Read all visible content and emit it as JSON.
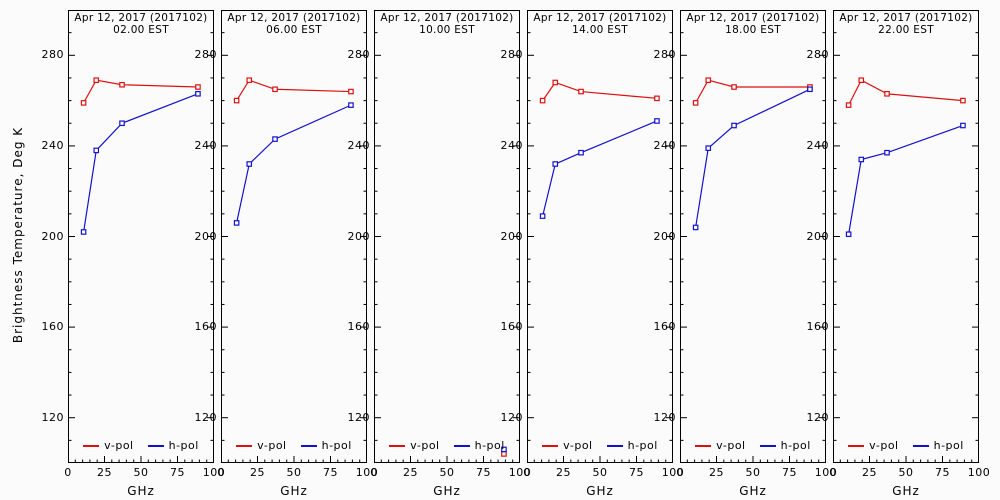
{
  "figure": {
    "ylabel": "Brightness Temperature, Deg K",
    "xlabel": "GHz",
    "background": "#fbfbfb",
    "axis_color": "#000000",
    "legend": {
      "v_label": "v-pol",
      "h_label": "h-pol"
    },
    "colors": {
      "v_pol": "#dd1010",
      "h_pol": "#1212cc"
    }
  },
  "chart_data": [
    {
      "type": "line",
      "title": "Apr 12, 2017 (2017102)",
      "subtitle": "02.00 EST",
      "xlabel": "GHz",
      "ylabel": "Brightness Temperature, Deg K",
      "x": [
        10.7,
        19.35,
        37.0,
        89.0
      ],
      "xlim": [
        0,
        100
      ],
      "ylim": [
        100,
        300
      ],
      "xticks": [
        0,
        25,
        50,
        75,
        100
      ],
      "yticks": [
        120,
        160,
        200,
        240,
        280
      ],
      "legend_position": "bottom-inside",
      "series": [
        {
          "name": "v-pol",
          "color": "#dd1010",
          "values": [
            259,
            269,
            267,
            266
          ]
        },
        {
          "name": "h-pol",
          "color": "#1212cc",
          "values": [
            202,
            238,
            250,
            263
          ]
        }
      ]
    },
    {
      "type": "line",
      "title": "Apr 12, 2017 (2017102)",
      "subtitle": "06.00 EST",
      "xlabel": "GHz",
      "ylabel": "Brightness Temperature, Deg K",
      "x": [
        10.7,
        19.35,
        37.0,
        89.0
      ],
      "xlim": [
        0,
        100
      ],
      "ylim": [
        100,
        300
      ],
      "xticks": [
        0,
        25,
        50,
        75,
        100
      ],
      "yticks": [
        120,
        160,
        200,
        240,
        280
      ],
      "legend_position": "bottom-inside",
      "series": [
        {
          "name": "v-pol",
          "color": "#dd1010",
          "values": [
            260,
            269,
            265,
            264
          ]
        },
        {
          "name": "h-pol",
          "color": "#1212cc",
          "values": [
            206,
            232,
            243,
            258
          ]
        }
      ]
    },
    {
      "type": "line",
      "title": "Apr 12, 2017 (2017102)",
      "subtitle": "10.00 EST",
      "xlabel": "GHz",
      "ylabel": "Brightness Temperature, Deg K",
      "x": [
        10.7,
        19.35,
        37.0,
        89.0
      ],
      "xlim": [
        0,
        100
      ],
      "ylim": [
        100,
        300
      ],
      "xticks": [
        0,
        25,
        50,
        75,
        100
      ],
      "yticks": [
        120,
        160,
        200,
        240,
        280
      ],
      "legend_position": "bottom-inside",
      "series": [
        {
          "name": "v-pol",
          "color": "#dd1010",
          "values": [
            null,
            null,
            null,
            104
          ]
        },
        {
          "name": "h-pol",
          "color": "#1212cc",
          "values": [
            null,
            null,
            null,
            106
          ]
        }
      ]
    },
    {
      "type": "line",
      "title": "Apr 12, 2017 (2017102)",
      "subtitle": "14.00 EST",
      "xlabel": "GHz",
      "ylabel": "Brightness Temperature, Deg K",
      "x": [
        10.7,
        19.35,
        37.0,
        89.0
      ],
      "xlim": [
        0,
        100
      ],
      "ylim": [
        100,
        300
      ],
      "xticks": [
        0,
        25,
        50,
        75,
        100
      ],
      "yticks": [
        120,
        160,
        200,
        240,
        280
      ],
      "legend_position": "bottom-inside",
      "series": [
        {
          "name": "v-pol",
          "color": "#dd1010",
          "values": [
            260,
            268,
            264,
            261
          ]
        },
        {
          "name": "h-pol",
          "color": "#1212cc",
          "values": [
            209,
            232,
            237,
            251
          ]
        }
      ]
    },
    {
      "type": "line",
      "title": "Apr 12, 2017 (2017102)",
      "subtitle": "18.00 EST",
      "xlabel": "GHz",
      "ylabel": "Brightness Temperature, Deg K",
      "x": [
        10.7,
        19.35,
        37.0,
        89.0
      ],
      "xlim": [
        0,
        100
      ],
      "ylim": [
        100,
        300
      ],
      "xticks": [
        0,
        25,
        50,
        75,
        100
      ],
      "yticks": [
        120,
        160,
        200,
        240,
        280
      ],
      "legend_position": "bottom-inside",
      "series": [
        {
          "name": "v-pol",
          "color": "#dd1010",
          "values": [
            259,
            269,
            266,
            266
          ]
        },
        {
          "name": "h-pol",
          "color": "#1212cc",
          "values": [
            204,
            239,
            249,
            265
          ]
        }
      ]
    },
    {
      "type": "line",
      "title": "Apr 12, 2017 (2017102)",
      "subtitle": "22.00 EST",
      "xlabel": "GHz",
      "ylabel": "Brightness Temperature, Deg K",
      "x": [
        10.7,
        19.35,
        37.0,
        89.0
      ],
      "xlim": [
        0,
        100
      ],
      "ylim": [
        100,
        300
      ],
      "xticks": [
        0,
        25,
        50,
        75,
        100
      ],
      "yticks": [
        120,
        160,
        200,
        240,
        280
      ],
      "legend_position": "bottom-inside",
      "series": [
        {
          "name": "v-pol",
          "color": "#dd1010",
          "values": [
            258,
            269,
            263,
            260
          ]
        },
        {
          "name": "h-pol",
          "color": "#1212cc",
          "values": [
            201,
            234,
            237,
            249
          ]
        }
      ]
    }
  ]
}
